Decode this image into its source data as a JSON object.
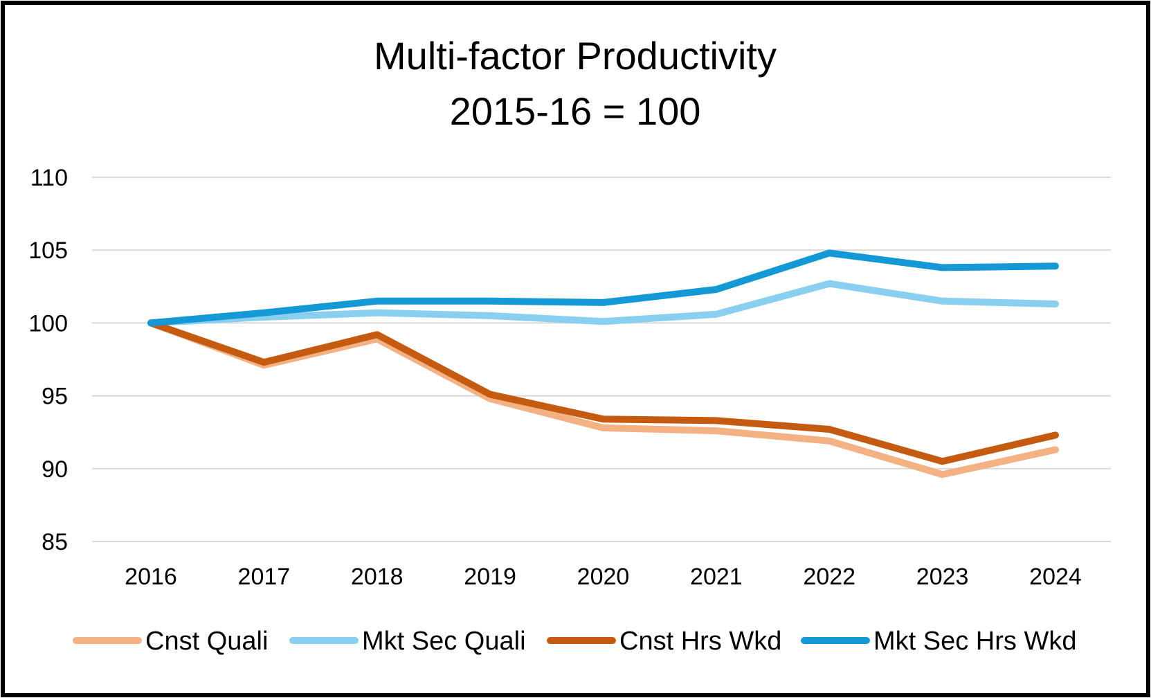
{
  "chart_data": {
    "type": "line",
    "title": "Multi-factor Productivity",
    "subtitle": "2015-16 = 100",
    "xlabel": "",
    "ylabel": "",
    "categories": [
      "2016",
      "2017",
      "2018",
      "2019",
      "2020",
      "2021",
      "2022",
      "2023",
      "2024"
    ],
    "ylim": [
      85,
      110
    ],
    "yticks": [
      "85",
      "90",
      "95",
      "100",
      "105",
      "110"
    ],
    "ytick_values": [
      85,
      90,
      95,
      100,
      105,
      110
    ],
    "grid": "horizontal",
    "legend_position": "bottom",
    "series": [
      {
        "name": "Cnst Quali",
        "color": "#F4B183",
        "values": [
          100.0,
          97.1,
          98.9,
          94.8,
          92.8,
          92.6,
          91.9,
          89.6,
          91.3
        ]
      },
      {
        "name": "Mkt Sec Quali",
        "color": "#89CFF0",
        "values": [
          100.0,
          100.4,
          100.7,
          100.5,
          100.1,
          100.6,
          102.7,
          101.5,
          101.3
        ]
      },
      {
        "name": "Cnst Hrs Wkd",
        "color": "#C55A11",
        "values": [
          100.0,
          97.3,
          99.2,
          95.1,
          93.4,
          93.3,
          92.7,
          90.5,
          92.3
        ]
      },
      {
        "name": "Mkt Sec Hrs Wkd",
        "color": "#1599D6",
        "values": [
          100.0,
          100.7,
          101.5,
          101.5,
          101.4,
          102.3,
          104.8,
          103.8,
          103.9
        ]
      }
    ]
  }
}
